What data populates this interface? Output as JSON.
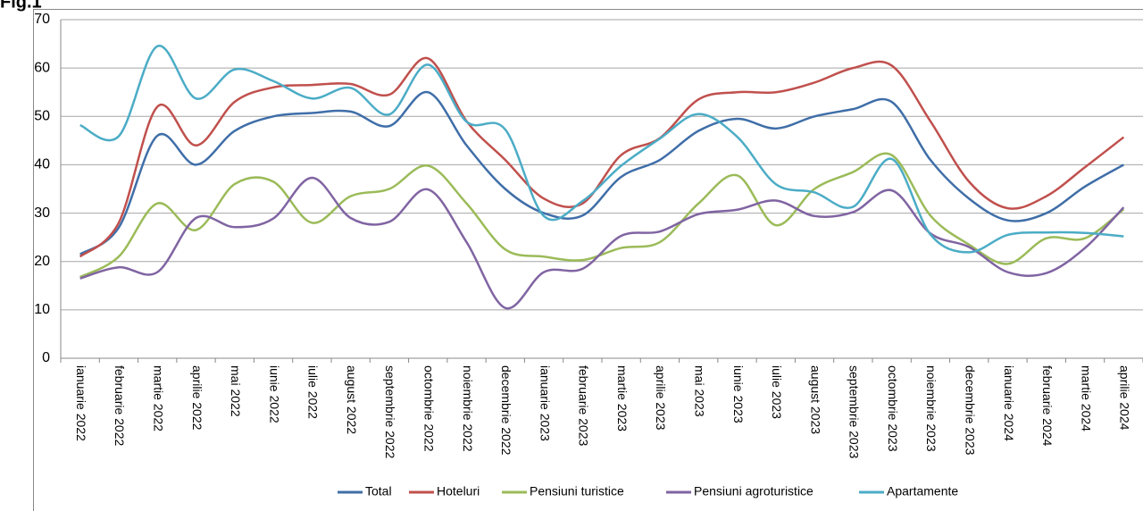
{
  "chart_data": {
    "type": "line",
    "title": "Fig.1",
    "categories": [
      "ianuarie 2022",
      "februarie 2022",
      "martie 2022",
      "aprilie 2022",
      "mai 2022",
      "iunie 2022",
      "iulie 2022",
      "august 2022",
      "septembrie 2022",
      "octombrie 2022",
      "noiembrie 2022",
      "decembrie 2022",
      "ianuarie 2023",
      "februarie 2023",
      "martie 2023",
      "aprilie 2023",
      "mai 2023",
      "iunie 2023",
      "iulie 2023",
      "august 2023",
      "septembrie 2023",
      "octombrie 2023",
      "noiembrie 2023",
      "decembrie 2023",
      "ianuarie 2024",
      "februarie 2024",
      "martie 2024",
      "aprilie 2024"
    ],
    "series": [
      {
        "name": "Total",
        "color": "#3f6ea8",
        "values": [
          21.5,
          27,
          46,
          40,
          47,
          50,
          50.7,
          51,
          48,
          55,
          44,
          35,
          30,
          29.5,
          37.5,
          41,
          47,
          49.5,
          47.5,
          50,
          51.5,
          53,
          41,
          33,
          28.5,
          30,
          35.5,
          40
        ]
      },
      {
        "name": "Hoteluri",
        "color": "#c0504d",
        "values": [
          21,
          28,
          52,
          44,
          53,
          56,
          56.5,
          56.7,
          54.5,
          62,
          49,
          41,
          33,
          32,
          42,
          45.5,
          53.5,
          55,
          55,
          57,
          60,
          60.5,
          49,
          36.5,
          31,
          33.5,
          39.5,
          45.7
        ]
      },
      {
        "name": "Pensiuni turistice",
        "color": "#9bbb59",
        "values": [
          16.8,
          21,
          32,
          26.5,
          36,
          36.5,
          28,
          33.5,
          35,
          39.8,
          32,
          22.5,
          21,
          20.3,
          22.8,
          24,
          32,
          37.8,
          27.5,
          35,
          38.5,
          42,
          29.5,
          23.5,
          19.5,
          24.8,
          24.8,
          30.8
        ]
      },
      {
        "name": "Pensiuni agroturistice",
        "color": "#8064a2",
        "values": [
          16.5,
          18.8,
          17.8,
          29,
          27.1,
          28.9,
          37.3,
          29,
          28.2,
          34.9,
          24,
          10.4,
          17.8,
          18.5,
          25.3,
          26.2,
          29.8,
          30.7,
          32.6,
          29.4,
          30.2,
          34.7,
          25.8,
          23,
          17.8,
          17.6,
          22.8,
          31.2
        ]
      },
      {
        "name": "Apartamente",
        "color": "#4bacc6",
        "values": [
          48.2,
          45.9,
          64.5,
          53.7,
          59.7,
          57.3,
          53.7,
          55.9,
          50.4,
          60.7,
          48.9,
          47.3,
          29.4,
          32.5,
          39.8,
          45.4,
          50.5,
          45.8,
          36,
          34.3,
          31.3,
          41.2,
          25.6,
          21.9,
          25.5,
          26,
          25.9,
          25.2
        ]
      }
    ],
    "ylim": [
      0,
      70
    ],
    "yticks": [
      0,
      10,
      20,
      30,
      40,
      50,
      60,
      70
    ],
    "grid": true,
    "legend": "bottom"
  }
}
